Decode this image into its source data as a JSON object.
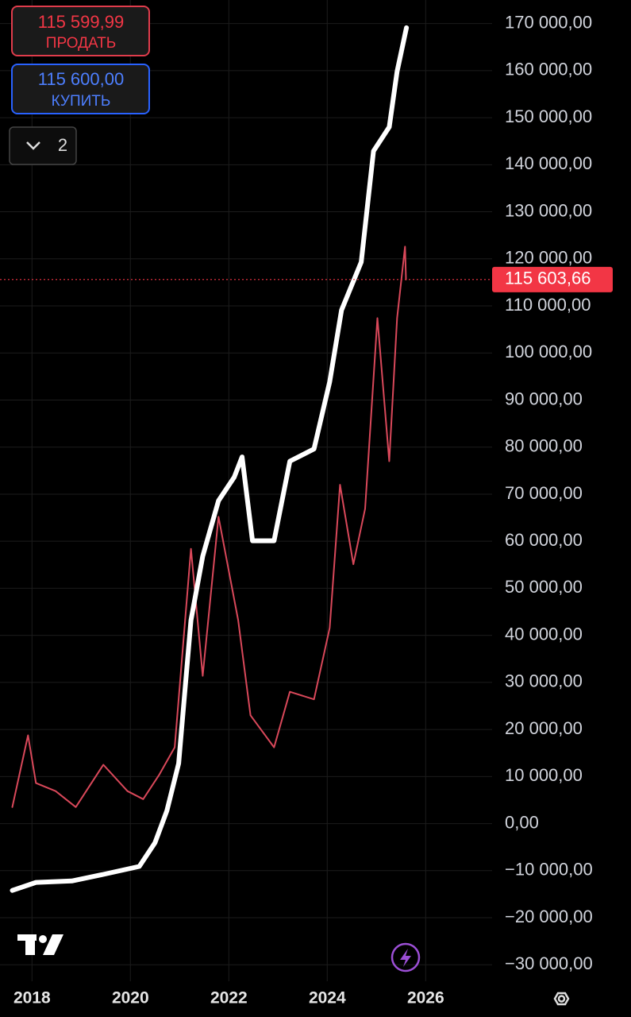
{
  "sell": {
    "price": "115 599,99",
    "label": "ПРОДАТЬ"
  },
  "buy": {
    "price": "115 600,00",
    "label": "КУПИТЬ"
  },
  "dropdown": "2",
  "chart_data": {
    "type": "line",
    "xlim": [
      2017.35,
      2027.35
    ],
    "ylim": [
      -33500,
      175000
    ],
    "xticks": [
      2018,
      2020,
      2022,
      2024,
      2026
    ],
    "yticks": [
      {
        "value": 170000,
        "label": "170 000,00"
      },
      {
        "value": 160000,
        "label": "160 000,00"
      },
      {
        "value": 150000,
        "label": "150 000,00"
      },
      {
        "value": 140000,
        "label": "140 000,00"
      },
      {
        "value": 130000,
        "label": "130 000,00"
      },
      {
        "value": 120000,
        "label": "120 000,00"
      },
      {
        "value": 110000,
        "label": "110 000,00"
      },
      {
        "value": 100000,
        "label": "100 000,00"
      },
      {
        "value": 90000,
        "label": "90 000,00"
      },
      {
        "value": 80000,
        "label": "80 000,00"
      },
      {
        "value": 70000,
        "label": "70 000,00"
      },
      {
        "value": 60000,
        "label": "60 000,00"
      },
      {
        "value": 50000,
        "label": "50 000,00"
      },
      {
        "value": 40000,
        "label": "40 000,00"
      },
      {
        "value": 30000,
        "label": "30 000,00"
      },
      {
        "value": 20000,
        "label": "20 000,00"
      },
      {
        "value": 10000,
        "label": "10 000,00"
      },
      {
        "value": 0,
        "label": "0,00"
      },
      {
        "value": -10000,
        "label": "−10 000,00"
      },
      {
        "value": -20000,
        "label": "−20 000,00"
      },
      {
        "value": -30000,
        "label": "−30 000,00"
      }
    ],
    "grid": true,
    "series": [
      {
        "color": "#d9485a",
        "width": 2,
        "x": [
          2017.6,
          2017.92,
          2018.08,
          2018.48,
          2018.89,
          2019.45,
          2019.94,
          2020.26,
          2020.58,
          2020.9,
          2021.23,
          2021.47,
          2021.79,
          2022.19,
          2022.44,
          2022.92,
          2023.24,
          2023.73,
          2024.05,
          2024.26,
          2024.53,
          2024.77,
          2025.02,
          2025.26,
          2025.42,
          2025.58,
          2025.6
        ],
        "values": [
          3500,
          18750,
          8600,
          6900,
          3500,
          12500,
          6900,
          5200,
          10300,
          16200,
          58400,
          31400,
          65200,
          43200,
          23000,
          16200,
          28000,
          26400,
          41600,
          72000,
          55100,
          66900,
          107400,
          77000,
          107400,
          122600,
          115600
        ]
      },
      {
        "color": "#ffffff",
        "width": 6,
        "x": [
          2017.6,
          2018.08,
          2018.81,
          2019.45,
          2020.18,
          2020.5,
          2020.74,
          2020.98,
          2021.23,
          2021.47,
          2021.79,
          2022.11,
          2022.27,
          2022.48,
          2022.92,
          2023.24,
          2023.73,
          2024.05,
          2024.29,
          2024.69,
          2024.94,
          2025.26,
          2025.42,
          2025.61
        ],
        "values": [
          -14200,
          -12500,
          -12200,
          -10800,
          -9100,
          -4050,
          2700,
          12800,
          43200,
          56800,
          68600,
          73600,
          77900,
          60100,
          60100,
          77000,
          79600,
          93900,
          109100,
          119300,
          142900,
          148000,
          159800,
          169100
        ]
      }
    ],
    "current_price": {
      "value": 115603.66,
      "label": "115 603,66",
      "color": "#f23645"
    }
  }
}
